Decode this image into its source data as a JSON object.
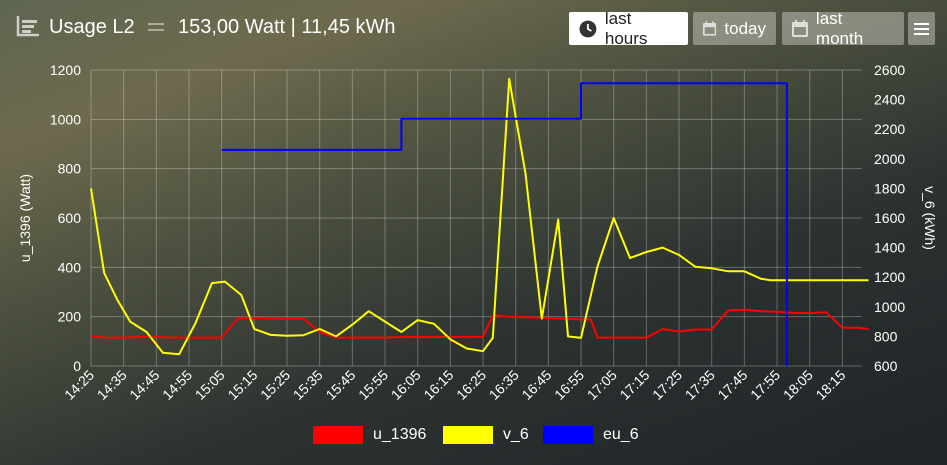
{
  "header": {
    "title": "Usage L2",
    "readout": "153,00 Watt | 11,45 kWh",
    "buttons": {
      "last_hours": "last hours",
      "today": "today",
      "last_month": "last month"
    },
    "active_button": "last hours"
  },
  "chart_data": {
    "type": "line",
    "x_ticks": [
      "14:25",
      "14:35",
      "14:45",
      "14:55",
      "15:05",
      "15:15",
      "15:25",
      "15:35",
      "15:45",
      "15:55",
      "16:05",
      "16:15",
      "16:25",
      "16:35",
      "16:45",
      "16:55",
      "17:05",
      "17:15",
      "17:25",
      "17:35",
      "17:45",
      "17:55",
      "18:05",
      "18:15"
    ],
    "x_range_minutes": [
      865,
      1101
    ],
    "y_left": {
      "label": "u_1396 (Watt)",
      "min": 0,
      "max": 1200,
      "ticks": [
        0,
        200,
        400,
        600,
        800,
        1000,
        1200
      ]
    },
    "y_right": {
      "label": "v_6 (kWh)",
      "min": 600,
      "max": 2600,
      "ticks": [
        600,
        800,
        1000,
        1200,
        1400,
        1600,
        1800,
        2000,
        2200,
        2400,
        2600
      ]
    },
    "grid": true,
    "legend_position": "bottom",
    "series": [
      {
        "name": "u_1396",
        "axis": "left",
        "color": "#ff0000",
        "step": false,
        "points": [
          [
            865,
            120
          ],
          [
            870,
            115
          ],
          [
            875,
            115
          ],
          [
            880,
            118
          ],
          [
            885,
            118
          ],
          [
            890,
            115
          ],
          [
            895,
            115
          ],
          [
            900,
            115
          ],
          [
            903,
            115
          ],
          [
            905,
            115
          ],
          [
            910,
            195
          ],
          [
            915,
            195
          ],
          [
            920,
            193
          ],
          [
            925,
            192
          ],
          [
            930,
            192
          ],
          [
            935,
            138
          ],
          [
            940,
            115
          ],
          [
            945,
            115
          ],
          [
            950,
            115
          ],
          [
            955,
            115
          ],
          [
            960,
            118
          ],
          [
            965,
            118
          ],
          [
            970,
            118
          ],
          [
            975,
            118
          ],
          [
            980,
            118
          ],
          [
            985,
            118
          ],
          [
            988,
            205
          ],
          [
            993,
            200
          ],
          [
            998,
            198
          ],
          [
            1003,
            195
          ],
          [
            1008,
            192
          ],
          [
            1013,
            190
          ],
          [
            1018,
            188
          ],
          [
            1020,
            115
          ],
          [
            1025,
            115
          ],
          [
            1030,
            115
          ],
          [
            1035,
            115
          ],
          [
            1040,
            150
          ],
          [
            1045,
            140
          ],
          [
            1050,
            148
          ],
          [
            1055,
            148
          ],
          [
            1060,
            225
          ],
          [
            1065,
            228
          ],
          [
            1070,
            222
          ],
          [
            1075,
            220
          ],
          [
            1080,
            215
          ],
          [
            1085,
            215
          ],
          [
            1090,
            218
          ],
          [
            1095,
            155
          ],
          [
            1100,
            155
          ],
          [
            1103,
            150
          ]
        ]
      },
      {
        "name": "v_6",
        "axis": "right",
        "color": "#ffff00",
        "step": false,
        "points": [
          [
            865,
            1800
          ],
          [
            869,
            1230
          ],
          [
            873,
            1050
          ],
          [
            877,
            900
          ],
          [
            882,
            830
          ],
          [
            887,
            690
          ],
          [
            892,
            680
          ],
          [
            897,
            890
          ],
          [
            902,
            1160
          ],
          [
            906,
            1170
          ],
          [
            911,
            1080
          ],
          [
            915,
            850
          ],
          [
            920,
            810
          ],
          [
            925,
            805
          ],
          [
            930,
            808
          ],
          [
            935,
            850
          ],
          [
            940,
            800
          ],
          [
            945,
            880
          ],
          [
            950,
            970
          ],
          [
            955,
            900
          ],
          [
            960,
            830
          ],
          [
            965,
            910
          ],
          [
            970,
            885
          ],
          [
            975,
            780
          ],
          [
            980,
            718
          ],
          [
            985,
            700
          ],
          [
            988,
            790
          ],
          [
            993,
            2540
          ],
          [
            998,
            1900
          ],
          [
            1003,
            920
          ],
          [
            1008,
            1590
          ],
          [
            1011,
            800
          ],
          [
            1015,
            790
          ],
          [
            1020,
            1270
          ],
          [
            1025,
            1600
          ],
          [
            1030,
            1330
          ],
          [
            1035,
            1370
          ],
          [
            1040,
            1400
          ],
          [
            1045,
            1350
          ],
          [
            1050,
            1270
          ],
          [
            1055,
            1260
          ],
          [
            1060,
            1240
          ],
          [
            1065,
            1240
          ],
          [
            1070,
            1190
          ],
          [
            1073,
            1180
          ],
          [
            1078,
            1180
          ],
          [
            1083,
            1180
          ],
          [
            1088,
            1180
          ],
          [
            1092,
            1180
          ],
          [
            1097,
            1180
          ],
          [
            1103,
            1180
          ]
        ]
      },
      {
        "name": "eu_6",
        "axis": "right",
        "color": "#0000ff",
        "step": true,
        "points": [
          [
            905,
            2060
          ],
          [
            960,
            2060
          ],
          [
            960,
            2270
          ],
          [
            1015,
            2270
          ],
          [
            1015,
            2510
          ],
          [
            1078,
            2510
          ],
          [
            1078,
            600
          ]
        ]
      }
    ]
  }
}
